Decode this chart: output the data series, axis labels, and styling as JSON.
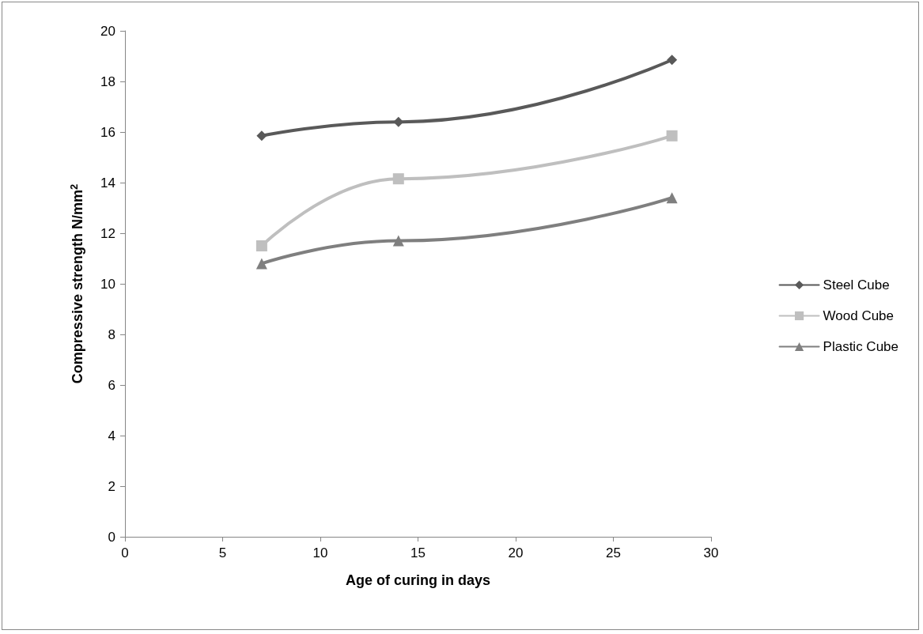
{
  "chart_data": {
    "type": "line",
    "xlabel": "Age of curing in days",
    "ylabel": "Compressive strength N/mm$^{2}$",
    "x": [
      7,
      14,
      28
    ],
    "series": [
      {
        "name": "Steel Cube",
        "color": "#595959",
        "marker": "diamond",
        "values": [
          15.85,
          16.4,
          18.85
        ]
      },
      {
        "name": "Wood Cube",
        "color": "#bfbfbf",
        "marker": "square",
        "values": [
          11.5,
          14.15,
          15.85
        ]
      },
      {
        "name": "Plastic Cube",
        "color": "#7f7f7f",
        "marker": "triangle",
        "values": [
          10.8,
          11.7,
          13.4
        ]
      }
    ],
    "xlim": [
      0,
      30
    ],
    "xticks": [
      0,
      5,
      10,
      15,
      20,
      25,
      30
    ],
    "ylim": [
      0,
      20
    ],
    "yticks": [
      0,
      2,
      4,
      6,
      8,
      10,
      12,
      14,
      16,
      18,
      20
    ],
    "grid": false,
    "legend": "right",
    "line_style": "solid"
  }
}
